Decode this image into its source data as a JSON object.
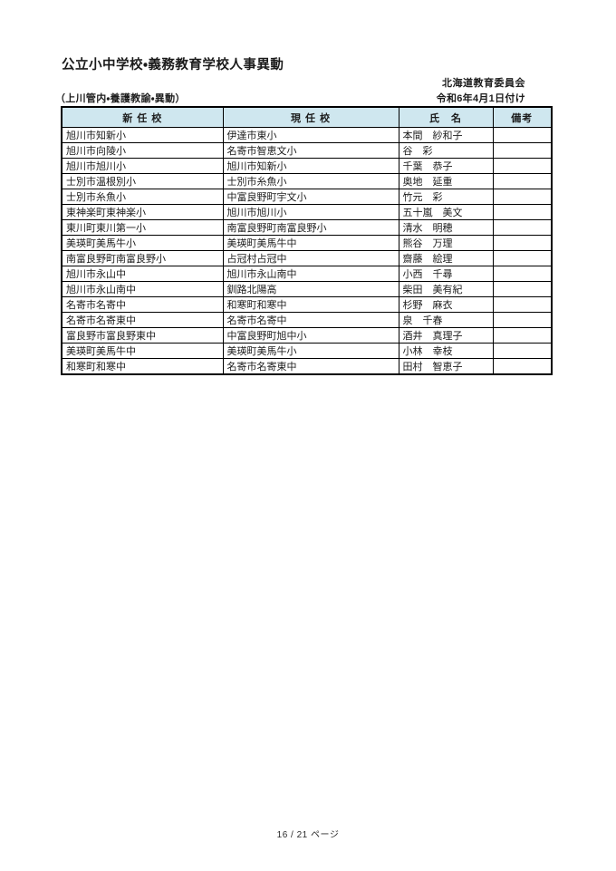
{
  "page": {
    "title": "公立小中学校・義務教育学校人事異動",
    "agency": "北海道教育委員会",
    "section_label": "（上川管内・養護教諭・異動）",
    "effective_date": "令和6年4月1日付け",
    "footer_page": "16 / 21 ページ"
  },
  "colors": {
    "header_bg": "#cfe7ef",
    "border": "#000000",
    "text": "#1c1c1c"
  },
  "table": {
    "headers": [
      "新 任 校",
      "現 任 校",
      "氏　名",
      "備考"
    ],
    "rows": [
      {
        "new_school": "旭川市知新小",
        "current_school": "伊達市東小",
        "name": "本間　紗和子",
        "remarks": ""
      },
      {
        "new_school": "旭川市向陵小",
        "current_school": "名寄市智恵文小",
        "name": "谷　彩",
        "remarks": ""
      },
      {
        "new_school": "旭川市旭川小",
        "current_school": "旭川市知新小",
        "name": "千葉　恭子",
        "remarks": ""
      },
      {
        "new_school": "士別市温根別小",
        "current_school": "士別市糸魚小",
        "name": "奥地　延重",
        "remarks": ""
      },
      {
        "new_school": "士別市糸魚小",
        "current_school": "中富良野町宇文小",
        "name": "竹元　彩",
        "remarks": ""
      },
      {
        "new_school": "東神楽町東神楽小",
        "current_school": "旭川市旭川小",
        "name": "五十嵐　美文",
        "remarks": ""
      },
      {
        "new_school": "東川町東川第一小",
        "current_school": "南富良野町南富良野小",
        "name": "清水　明穂",
        "remarks": ""
      },
      {
        "new_school": "美瑛町美馬牛小",
        "current_school": "美瑛町美馬牛中",
        "name": "熊谷　万理",
        "remarks": ""
      },
      {
        "new_school": "南富良野町南富良野小",
        "current_school": "占冠村占冠中",
        "name": "齋藤　絵理",
        "remarks": ""
      },
      {
        "new_school": "旭川市永山中",
        "current_school": "旭川市永山南中",
        "name": "小西　千尋",
        "remarks": ""
      },
      {
        "new_school": "旭川市永山南中",
        "current_school": "釧路北陽高",
        "name": "柴田　美有紀",
        "remarks": ""
      },
      {
        "new_school": "名寄市名寄中",
        "current_school": "和寒町和寒中",
        "name": "杉野　麻衣",
        "remarks": ""
      },
      {
        "new_school": "名寄市名寄東中",
        "current_school": "名寄市名寄中",
        "name": "泉　千春",
        "remarks": ""
      },
      {
        "new_school": "富良野市富良野東中",
        "current_school": "中富良野町旭中小",
        "name": "酒井　真理子",
        "remarks": ""
      },
      {
        "new_school": "美瑛町美馬牛中",
        "current_school": "美瑛町美馬牛小",
        "name": "小林　幸枝",
        "remarks": ""
      },
      {
        "new_school": "和寒町和寒中",
        "current_school": "名寄市名寄東中",
        "name": "田村　智恵子",
        "remarks": ""
      }
    ]
  }
}
